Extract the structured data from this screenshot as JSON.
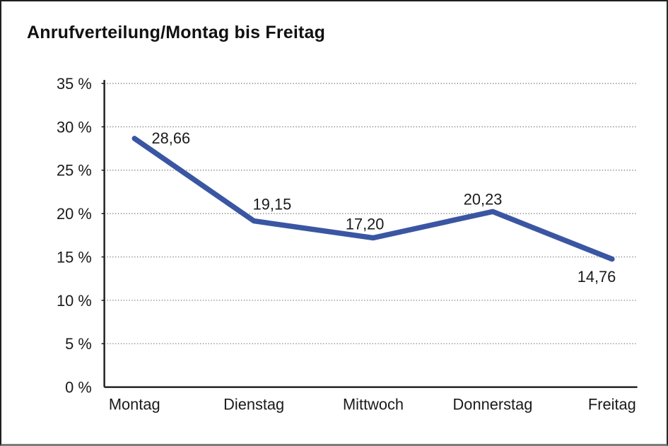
{
  "title": "Anrufverteilung/Montag bis Freitag",
  "chart_data": {
    "type": "line",
    "title": "Anrufverteilung/Montag bis Freitag",
    "categories": [
      "Montag",
      "Dienstag",
      "Mittwoch",
      "Donnerstag",
      "Freitag"
    ],
    "series": [
      {
        "name": "Anrufverteilung",
        "values": [
          28.66,
          19.15,
          17.2,
          20.23,
          14.76
        ],
        "labels": [
          "28,66",
          "19,15",
          "17,20",
          "20,23",
          "14,76"
        ],
        "color": "#3a56a3"
      }
    ],
    "xlabel": "",
    "ylabel": "",
    "ylim": [
      0,
      35
    ],
    "ytick_step": 5,
    "ytick_suffix": " %",
    "ytick_labels": [
      "0 %",
      "5 %",
      "10 %",
      "15 %",
      "20 %",
      "25 %",
      "30 %",
      "35 %"
    ],
    "grid": "horizontal-dotted",
    "legend": "none",
    "colors": {
      "text": "#1a1a1a",
      "grid": "#7a7a7a",
      "axis": "#1a1a1a",
      "background": "#ffffff"
    }
  }
}
